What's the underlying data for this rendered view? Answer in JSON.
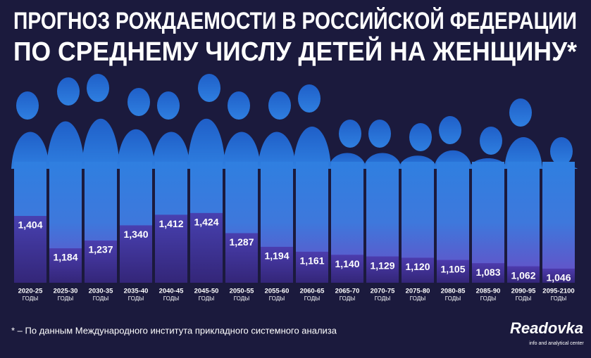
{
  "chart_data": {
    "type": "bar",
    "title": "ПРОГНОЗ РОЖДАЕМОСТИ В РОССИЙСКОЙ ФЕДЕРАЦИИ",
    "subtitle": "ПО СРЕДНЕМУ ЧИСЛУ ДЕТЕЙ НА ЖЕНЩИНУ*",
    "categories": [
      "2020-25",
      "2025-30",
      "2030-35",
      "2035-40",
      "2040-45",
      "2045-50",
      "2050-55",
      "2055-60",
      "2060-65",
      "2065-70",
      "2070-75",
      "2075-80",
      "2080-85",
      "2085-90",
      "2090-95",
      "2095-2100"
    ],
    "category_suffix": "ГОДЫ",
    "values": [
      1.404,
      1.184,
      1.237,
      1.34,
      1.412,
      1.424,
      1.287,
      1.194,
      1.161,
      1.14,
      1.129,
      1.12,
      1.105,
      1.083,
      1.062,
      1.046
    ],
    "value_labels": [
      "1,404",
      "1,184",
      "1,237",
      "1,340",
      "1,412",
      "1,424",
      "1,287",
      "1,194",
      "1,161",
      "1,140",
      "1,129",
      "1,120",
      "1,105",
      "1,083",
      "1,062",
      "1,046"
    ],
    "color": "#33287e",
    "ylim": [
      0.95,
      1.6
    ],
    "footnote": "* – По данным Международного института прикладного системного анализа",
    "logo": "Readovka",
    "logo_caption": "info and analytical center"
  }
}
